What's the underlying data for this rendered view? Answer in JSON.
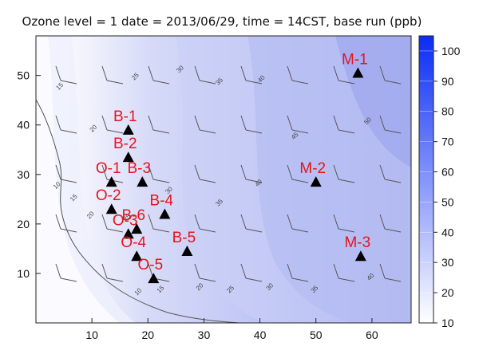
{
  "chart_data": {
    "type": "heatmap",
    "title": "Ozone level = 1 date = 2013/06/29, time = 14CST, base run (ppb)",
    "xlabel": "",
    "ylabel": "",
    "xlim": [
      0,
      67
    ],
    "ylim": [
      0,
      58
    ],
    "xticks": [
      10,
      20,
      30,
      40,
      50,
      60
    ],
    "yticks": [
      10,
      20,
      30,
      40,
      50
    ],
    "colorbar": {
      "range": [
        10,
        105
      ],
      "ticks": [
        10,
        20,
        30,
        40,
        50,
        60,
        70,
        80,
        90,
        100
      ],
      "low_color": "#ffffff",
      "high_color": "#0a2cf5"
    },
    "contour_labels": [
      {
        "text": "15",
        "x": 4.5,
        "y": 47.5
      },
      {
        "text": "20",
        "x": 10.5,
        "y": 39
      },
      {
        "text": "25",
        "x": 18,
        "y": 49.5
      },
      {
        "text": "30",
        "x": 26,
        "y": 51
      },
      {
        "text": "35",
        "x": 33,
        "y": 48.5
      },
      {
        "text": "40",
        "x": 40.5,
        "y": 49
      },
      {
        "text": "45",
        "x": 46.5,
        "y": 37.5
      },
      {
        "text": "50",
        "x": 59.5,
        "y": 40.5
      },
      {
        "text": "10",
        "x": 4,
        "y": 27.5
      },
      {
        "text": "15",
        "x": 7,
        "y": 25
      },
      {
        "text": "20",
        "x": 10,
        "y": 21.5
      },
      {
        "text": "25",
        "x": 16.5,
        "y": 21
      },
      {
        "text": "30",
        "x": 24,
        "y": 26.5
      },
      {
        "text": "35",
        "x": 33,
        "y": 24
      },
      {
        "text": "40",
        "x": 40,
        "y": 28
      },
      {
        "text": "10",
        "x": 18.5,
        "y": 6
      },
      {
        "text": "15",
        "x": 22.5,
        "y": 6.5
      },
      {
        "text": "20",
        "x": 29.5,
        "y": 7
      },
      {
        "text": "25",
        "x": 35,
        "y": 6.5
      },
      {
        "text": "30",
        "x": 42,
        "y": 7
      },
      {
        "text": "35",
        "x": 50,
        "y": 6.5
      },
      {
        "text": "40",
        "x": 60,
        "y": 9
      }
    ],
    "stations": [
      {
        "label": "M-1",
        "x": 57.5,
        "y": 50.5
      },
      {
        "label": "M-2",
        "x": 50,
        "y": 28.5
      },
      {
        "label": "M-3",
        "x": 58,
        "y": 13.5
      },
      {
        "label": "B-1",
        "x": 16.5,
        "y": 39
      },
      {
        "label": "B-2",
        "x": 16.5,
        "y": 33.5
      },
      {
        "label": "B-3",
        "x": 19,
        "y": 28.5
      },
      {
        "label": "B-4",
        "x": 23,
        "y": 22
      },
      {
        "label": "B-5",
        "x": 27,
        "y": 14.5
      },
      {
        "label": "B-6",
        "x": 18,
        "y": 19
      },
      {
        "label": "O-1",
        "x": 13.5,
        "y": 28.5
      },
      {
        "label": "O-2",
        "x": 13.5,
        "y": 23
      },
      {
        "label": "O-3",
        "x": 16.5,
        "y": 18
      },
      {
        "label": "O-4",
        "x": 18,
        "y": 13.5
      },
      {
        "label": "O-5",
        "x": 21,
        "y": 9
      }
    ]
  }
}
